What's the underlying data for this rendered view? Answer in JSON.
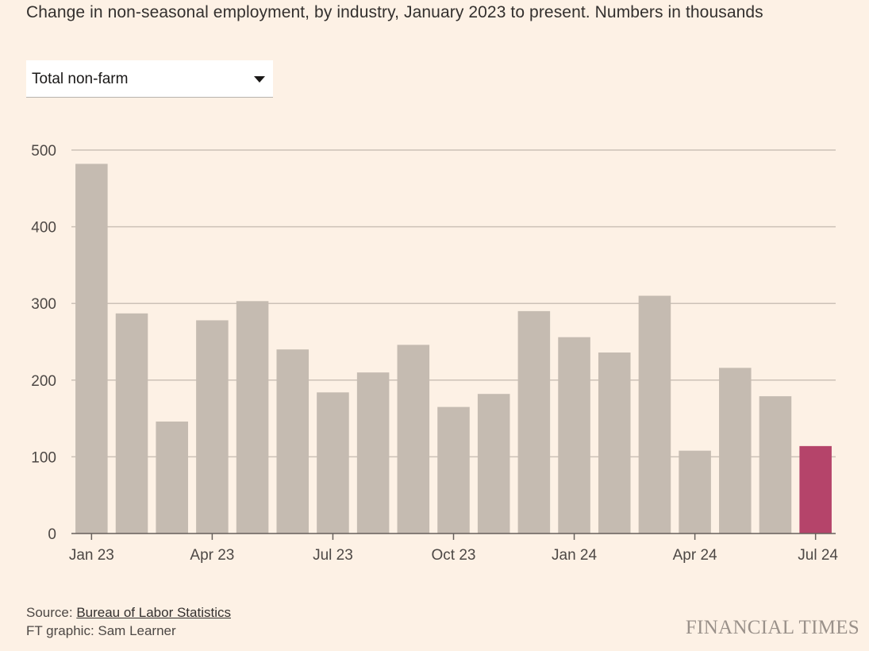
{
  "header": {
    "subtitle": "Change in non-seasonal employment, by industry, January 2023 to present. Numbers in thousands"
  },
  "filter": {
    "selected": "Total non-farm"
  },
  "colors": {
    "bar": "#c5bbb1",
    "highlight": "#b5446a",
    "grid": "#ccc1b7",
    "axis": "#66605c"
  },
  "chart_data": {
    "type": "bar",
    "categories": [
      "Jan 23",
      "Feb 23",
      "Mar 23",
      "Apr 23",
      "May 23",
      "Jun 23",
      "Jul 23",
      "Aug 23",
      "Sep 23",
      "Oct 23",
      "Nov 23",
      "Dec 23",
      "Jan 24",
      "Feb 24",
      "Mar 24",
      "Apr 24",
      "May 24",
      "Jun 24",
      "Jul 24"
    ],
    "values": [
      482,
      287,
      146,
      278,
      303,
      240,
      184,
      210,
      246,
      165,
      182,
      290,
      256,
      236,
      310,
      108,
      216,
      179,
      114
    ],
    "highlight_index": 18,
    "x_tick_labels": [
      "Jan 23",
      "Apr 23",
      "Jul 23",
      "Oct 23",
      "Jan 24",
      "Apr 24",
      "Jul 24"
    ],
    "x_tick_indices": [
      0,
      3,
      6,
      9,
      12,
      15,
      18
    ],
    "y_ticks": [
      0,
      100,
      200,
      300,
      400,
      500
    ],
    "ylim": [
      0,
      500
    ],
    "title": "Change in non-seasonal employment, by industry, January 2023 to present. Numbers in thousands",
    "xlabel": "",
    "ylabel": ""
  },
  "footer": {
    "source_prefix": "Source: ",
    "source_link": "Bureau of Labor Statistics",
    "credit": "FT graphic: Sam Learner",
    "brand": "FINANCIAL TIMES"
  }
}
